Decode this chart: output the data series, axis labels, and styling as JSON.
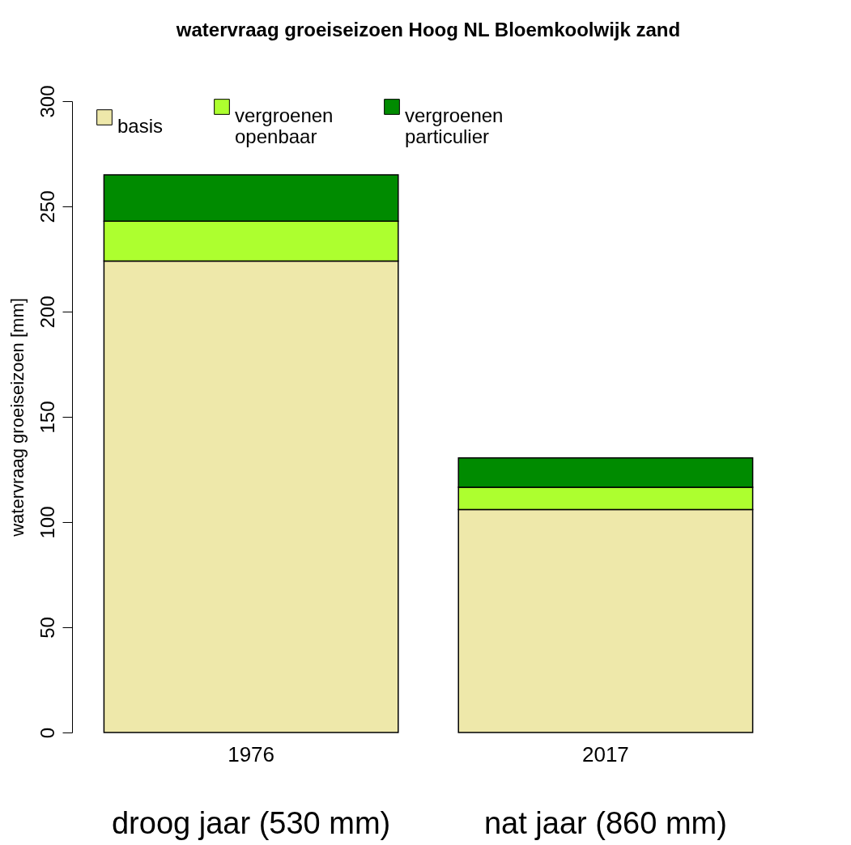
{
  "chart_data": {
    "type": "bar",
    "title": "watervraag groeiseizoen Hoog NL Bloemkoolwijk zand",
    "ylabel": "watervraag groeiseizoen [mm]",
    "categories": [
      "1976",
      "2017"
    ],
    "series": [
      {
        "name": "basis",
        "color": "#eee8aa",
        "values": [
          224,
          106
        ]
      },
      {
        "name": "vergroenen openbaar",
        "color": "#adff2f",
        "values": [
          19,
          10.5
        ]
      },
      {
        "name": "vergroenen particulier",
        "color": "#008b00",
        "values": [
          22,
          14
        ]
      }
    ],
    "stacked": true,
    "ylim": [
      0,
      300
    ],
    "yticks": [
      0,
      50,
      100,
      150,
      200,
      250,
      300
    ],
    "grid": false,
    "legend": "top left",
    "annotations": [
      "droog jaar (530 mm)",
      "nat jaar (860 mm)"
    ]
  }
}
